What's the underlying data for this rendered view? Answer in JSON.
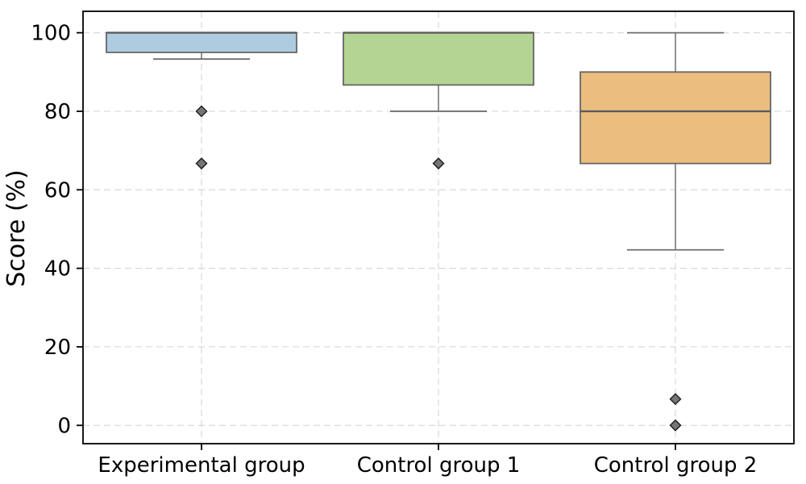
{
  "chart_data": {
    "type": "box",
    "title": "",
    "xlabel": "",
    "ylabel": "Score (%)",
    "ylim": [
      -4.7,
      105.5
    ],
    "yticks": [
      0,
      20,
      40,
      60,
      80,
      100
    ],
    "grid": "dashed gridlines on both axes",
    "legend": "none",
    "outlier_marker": "diamond",
    "categories": [
      "Experimental group",
      "Control group 1",
      "Control group 2"
    ],
    "series": [
      {
        "name": "Experimental group",
        "whisker_low": 93.3,
        "q1": 95,
        "median": 100,
        "q3": 100,
        "whisker_high": 100,
        "outliers": [
          80,
          66.7
        ],
        "color": "#aecce0"
      },
      {
        "name": "Control group 1",
        "whisker_low": 80,
        "q1": 86.7,
        "median": 100,
        "q3": 100,
        "whisker_high": 100,
        "outliers": [
          66.7
        ],
        "color": "#b4d494"
      },
      {
        "name": "Control group 2",
        "whisker_low": 44.7,
        "q1": 66.7,
        "median": 80,
        "q3": 90,
        "whisker_high": 100,
        "outliers": [
          6.7,
          0
        ],
        "color": "#ebbe7f"
      }
    ],
    "colors": {
      "background": "#ffffff",
      "box_edge": "#666666",
      "median": "#5c5c5c",
      "whisker": "#787878",
      "cap": "#6e6e6e",
      "outlier_fill": "#757575",
      "outlier_edge": "#1a1a1a",
      "grid": "#d8d8d8",
      "spine": "#000000",
      "tick": "#000000"
    }
  }
}
